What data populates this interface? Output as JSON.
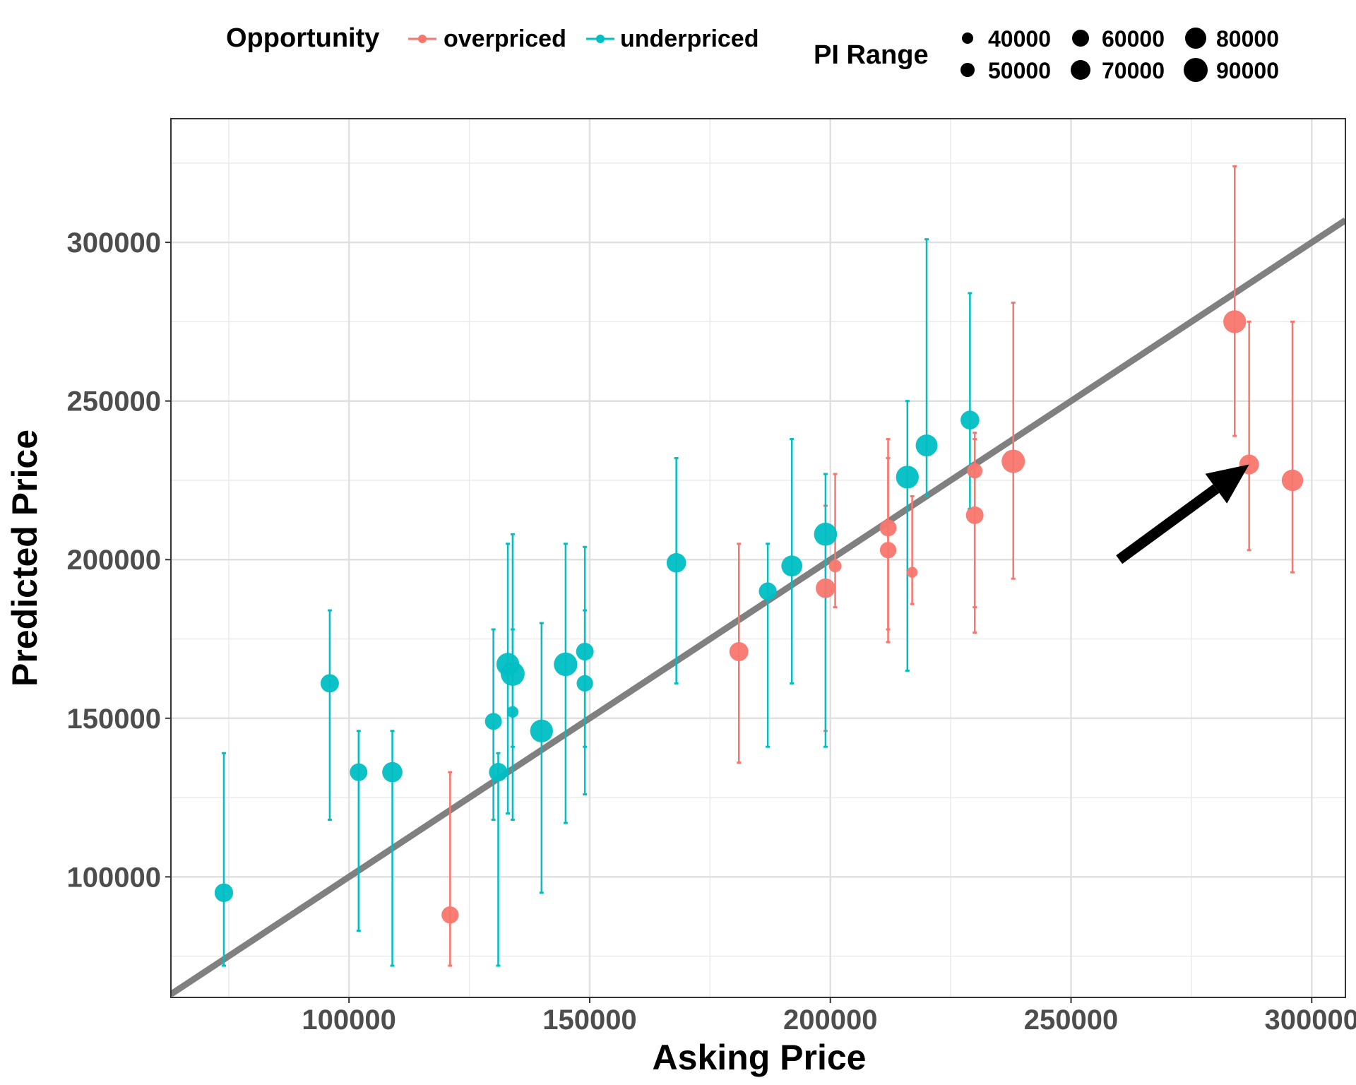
{
  "chart_data": {
    "type": "scatter",
    "xlabel": "Asking Price",
    "ylabel": "Predicted Price",
    "xlim": [
      63000,
      307000
    ],
    "ylim": [
      62000,
      339000
    ],
    "x_ticks": [
      100000,
      150000,
      200000,
      250000,
      300000
    ],
    "y_ticks": [
      100000,
      150000,
      200000,
      250000,
      300000
    ],
    "grid": true,
    "reference_line": {
      "slope": 1,
      "intercept": 0,
      "color": "#808080"
    },
    "legend": {
      "position": "top",
      "color_title": "Opportunity",
      "color_items": [
        {
          "label": "overpriced",
          "color": "#F8766D"
        },
        {
          "label": "underpriced",
          "color": "#00BFC4"
        }
      ],
      "size_title": "PI Range",
      "size_items": [
        "40000",
        "50000",
        "60000",
        "70000",
        "80000",
        "90000"
      ]
    },
    "annotation": {
      "type": "arrow",
      "from": [
        260000,
        200000
      ],
      "to": [
        287000,
        230000
      ]
    },
    "series": [
      {
        "name": "overpriced",
        "color": "#F8766D",
        "points": [
          {
            "x": 121000,
            "y": 88000,
            "lo": 72000,
            "hi": 133000,
            "range": 61000
          },
          {
            "x": 181000,
            "y": 171000,
            "lo": 136000,
            "hi": 205000,
            "range": 69000
          },
          {
            "x": 199000,
            "y": 191000,
            "lo": 146000,
            "hi": 217000,
            "range": 71000
          },
          {
            "x": 201000,
            "y": 198000,
            "lo": 185000,
            "hi": 227000,
            "range": 42000
          },
          {
            "x": 212000,
            "y": 210000,
            "lo": 178000,
            "hi": 238000,
            "range": 60000
          },
          {
            "x": 212000,
            "y": 203000,
            "lo": 174000,
            "hi": 232000,
            "range": 58000
          },
          {
            "x": 217000,
            "y": 196000,
            "lo": 186000,
            "hi": 220000,
            "range": 34000
          },
          {
            "x": 230000,
            "y": 228000,
            "lo": 185000,
            "hi": 238000,
            "range": 53000
          },
          {
            "x": 230000,
            "y": 214000,
            "lo": 177000,
            "hi": 240000,
            "range": 63000
          },
          {
            "x": 238000,
            "y": 231000,
            "lo": 194000,
            "hi": 281000,
            "range": 87000
          },
          {
            "x": 284000,
            "y": 275000,
            "lo": 239000,
            "hi": 324000,
            "range": 85000
          },
          {
            "x": 287000,
            "y": 230000,
            "lo": 203000,
            "hi": 275000,
            "range": 72000
          },
          {
            "x": 296000,
            "y": 225000,
            "lo": 196000,
            "hi": 275000,
            "range": 79000
          }
        ]
      },
      {
        "name": "underpriced",
        "color": "#00BFC4",
        "points": [
          {
            "x": 74000,
            "y": 95000,
            "lo": 72000,
            "hi": 139000,
            "range": 67000
          },
          {
            "x": 96000,
            "y": 161000,
            "lo": 118000,
            "hi": 184000,
            "range": 66000
          },
          {
            "x": 102000,
            "y": 133000,
            "lo": 83000,
            "hi": 146000,
            "range": 63000
          },
          {
            "x": 109000,
            "y": 133000,
            "lo": 72000,
            "hi": 146000,
            "range": 74000
          },
          {
            "x": 130000,
            "y": 149000,
            "lo": 118000,
            "hi": 178000,
            "range": 60000
          },
          {
            "x": 131000,
            "y": 133000,
            "lo": 72000,
            "hi": 139000,
            "range": 67000
          },
          {
            "x": 133000,
            "y": 167000,
            "lo": 120000,
            "hi": 205000,
            "range": 85000
          },
          {
            "x": 134000,
            "y": 164000,
            "lo": 118000,
            "hi": 208000,
            "range": 90000
          },
          {
            "x": 134000,
            "y": 152000,
            "lo": 141000,
            "hi": 178000,
            "range": 37000
          },
          {
            "x": 140000,
            "y": 146000,
            "lo": 95000,
            "hi": 180000,
            "range": 85000
          },
          {
            "x": 145000,
            "y": 167000,
            "lo": 117000,
            "hi": 205000,
            "range": 88000
          },
          {
            "x": 149000,
            "y": 171000,
            "lo": 141000,
            "hi": 204000,
            "range": 63000
          },
          {
            "x": 149000,
            "y": 161000,
            "lo": 126000,
            "hi": 184000,
            "range": 58000
          },
          {
            "x": 168000,
            "y": 199000,
            "lo": 161000,
            "hi": 232000,
            "range": 71000
          },
          {
            "x": 187000,
            "y": 190000,
            "lo": 141000,
            "hi": 205000,
            "range": 64000
          },
          {
            "x": 192000,
            "y": 198000,
            "lo": 161000,
            "hi": 238000,
            "range": 77000
          },
          {
            "x": 199000,
            "y": 208000,
            "lo": 141000,
            "hi": 227000,
            "range": 86000
          },
          {
            "x": 216000,
            "y": 226000,
            "lo": 165000,
            "hi": 250000,
            "range": 85000
          },
          {
            "x": 220000,
            "y": 236000,
            "lo": 220000,
            "hi": 301000,
            "range": 81000
          },
          {
            "x": 229000,
            "y": 244000,
            "lo": 216000,
            "hi": 284000,
            "range": 68000
          }
        ]
      }
    ]
  }
}
